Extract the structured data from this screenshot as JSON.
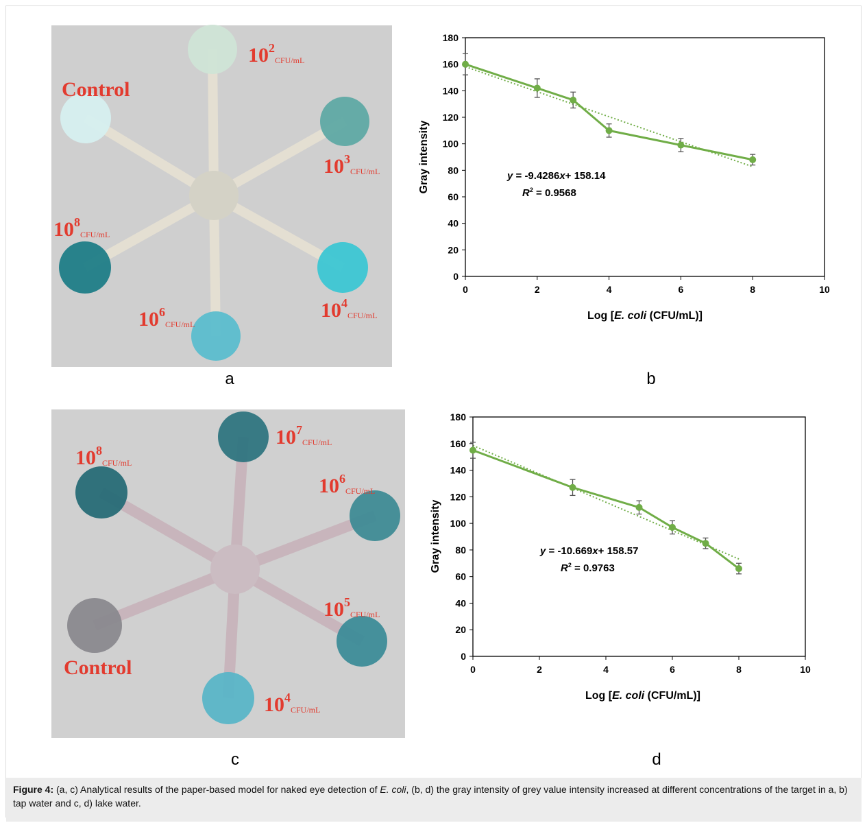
{
  "panel_letters": [
    "a",
    "b",
    "c",
    "d"
  ],
  "photos": [
    {
      "labels": [
        {
          "text": "Control"
        },
        {
          "base": "10",
          "exp": "2",
          "unit": "CFU/mL"
        },
        {
          "base": "10",
          "exp": "3",
          "unit": "CFU/mL"
        },
        {
          "base": "10",
          "exp": "8",
          "unit": "CFU/mL"
        },
        {
          "base": "10",
          "exp": "4",
          "unit": "CFU/mL"
        },
        {
          "base": "10",
          "exp": "6",
          "unit": "CFU/mL"
        }
      ]
    },
    {
      "labels": [
        {
          "text": "Control"
        },
        {
          "base": "10",
          "exp": "7",
          "unit": "CFU/mL"
        },
        {
          "base": "10",
          "exp": "8",
          "unit": "CFU/mL"
        },
        {
          "base": "10",
          "exp": "6",
          "unit": "CFU/mL"
        },
        {
          "base": "10",
          "exp": "5",
          "unit": "CFU/mL"
        },
        {
          "base": "10",
          "exp": "4",
          "unit": "CFU/mL"
        }
      ]
    }
  ],
  "chart_data": [
    {
      "type": "line",
      "ylabel": "Gray intensity",
      "xlabel": [
        "Log [",
        "E. coli",
        " (CFU/mL)]"
      ],
      "x": [
        0,
        2,
        3,
        4,
        6,
        8
      ],
      "values": [
        160,
        142,
        133,
        110,
        99,
        88
      ],
      "errors": [
        8,
        7,
        6,
        5,
        5,
        4
      ],
      "color": "#70ad47",
      "xlim": [
        0,
        10
      ],
      "xticks": [
        0,
        2,
        4,
        6,
        8,
        10
      ],
      "ylim": [
        0,
        180
      ],
      "yticks": [
        0,
        20,
        40,
        60,
        80,
        100,
        120,
        140,
        160,
        180
      ],
      "trendline": {
        "slope": -9.4286,
        "intercept": 158.14
      },
      "equation": [
        "y",
        " = -9.4286",
        "x",
        "+ 158.14"
      ],
      "r2": [
        "R",
        "2",
        " = 0.9568"
      ]
    },
    {
      "type": "line",
      "ylabel": "Gray intensity",
      "xlabel": [
        "Log [",
        "E. coli",
        " (CFU/mL)]"
      ],
      "x": [
        0,
        3,
        5,
        6,
        7,
        8
      ],
      "values": [
        155,
        127,
        112,
        97,
        85,
        66
      ],
      "errors": [
        6,
        6,
        5,
        5,
        4,
        4
      ],
      "color": "#70ad47",
      "xlim": [
        0,
        10
      ],
      "xticks": [
        0,
        2,
        4,
        6,
        8,
        10
      ],
      "ylim": [
        0,
        180
      ],
      "yticks": [
        0,
        20,
        40,
        60,
        80,
        100,
        120,
        140,
        160,
        180
      ],
      "trendline": {
        "slope": -10.669,
        "intercept": 158.57
      },
      "equation": [
        "y",
        " = -10.669",
        "x",
        "+ 158.57"
      ],
      "r2": [
        "R",
        "2",
        " = 0.9763"
      ]
    }
  ],
  "caption": [
    "Figure 4:",
    " (a, c) Analytical results of the paper-based model for naked eye detection of ",
    "E. coli",
    ", (b, d) the gray intensity of grey value intensity increased at different concentrations of the target in a, b) tap water and c, d) lake water."
  ]
}
